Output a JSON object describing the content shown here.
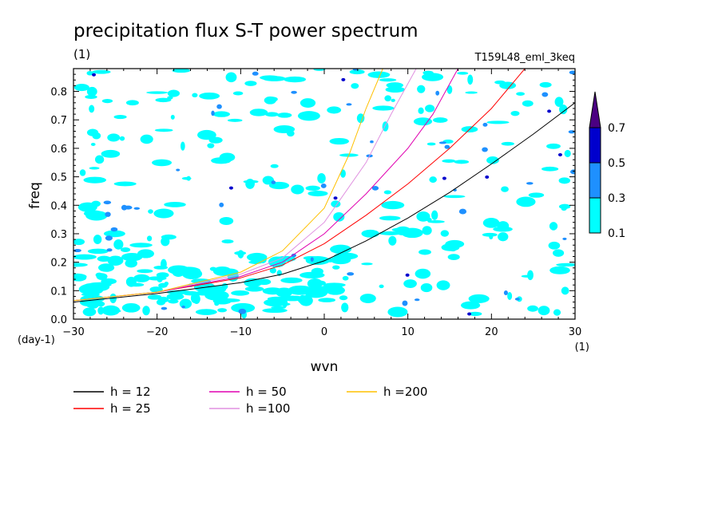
{
  "chart_data": {
    "type": "line",
    "title": "precipitation flux S-T power spectrum",
    "subtitle_left": "(1)",
    "subtitle_right": "T159L48_eml_3keq",
    "xlabel": "wvn",
    "ylabel": "freq",
    "x_unit": "(1)",
    "y_unit": "(day-1)",
    "xlim": [
      -30,
      30
    ],
    "ylim": [
      0,
      0.88
    ],
    "x_ticks": [
      -30,
      -20,
      -10,
      0,
      10,
      20,
      30
    ],
    "y_ticks": [
      0.0,
      0.1,
      0.2,
      0.3,
      0.4,
      0.5,
      0.6,
      0.7,
      0.8
    ],
    "x_tick_labels": [
      "−30",
      "−20",
      "−10",
      "0",
      "10",
      "20",
      "30"
    ],
    "y_tick_labels": [
      "0.0",
      "0.1",
      "0.2",
      "0.3",
      "0.4",
      "0.5",
      "0.6",
      "0.7",
      "0.8"
    ],
    "colorbar": {
      "levels": [
        "0.1",
        "0.3",
        "0.5",
        "0.7"
      ],
      "colors": [
        "#00ffff",
        "#1e90ff",
        "#0000cd",
        "#4b0082"
      ]
    },
    "series": [
      {
        "name": "h = 12",
        "color": "#000000",
        "x": [
          -30,
          -20,
          -10,
          -5,
          0,
          5,
          10,
          15,
          20,
          25,
          30
        ],
        "y": [
          0.06,
          0.09,
          0.128,
          0.158,
          0.205,
          0.275,
          0.355,
          0.445,
          0.545,
          0.65,
          0.76
        ]
      },
      {
        "name": "h = 25",
        "color": "#ff0000",
        "x": [
          -30,
          -20,
          -10,
          -5,
          0,
          5,
          10,
          15,
          20,
          24
        ],
        "y": [
          0.065,
          0.095,
          0.145,
          0.19,
          0.265,
          0.365,
          0.475,
          0.6,
          0.74,
          0.88
        ]
      },
      {
        "name": "h = 50",
        "color": "#e000b0",
        "x": [
          -30,
          -20,
          -10,
          -5,
          0,
          5,
          10,
          13,
          16
        ],
        "y": [
          0.065,
          0.095,
          0.15,
          0.2,
          0.3,
          0.44,
          0.6,
          0.72,
          0.88
        ]
      },
      {
        "name": "h =100",
        "color": "#e090e0",
        "x": [
          -30,
          -20,
          -10,
          -5,
          0,
          5,
          8,
          11
        ],
        "y": [
          0.065,
          0.095,
          0.158,
          0.215,
          0.34,
          0.55,
          0.72,
          0.88
        ]
      },
      {
        "name": "h =200",
        "color": "#ffc000",
        "x": [
          -30,
          -20,
          -10,
          -5,
          -2,
          0,
          3,
          5,
          7
        ],
        "y": [
          0.065,
          0.095,
          0.165,
          0.24,
          0.33,
          0.39,
          0.58,
          0.74,
          0.88
        ]
      }
    ]
  }
}
